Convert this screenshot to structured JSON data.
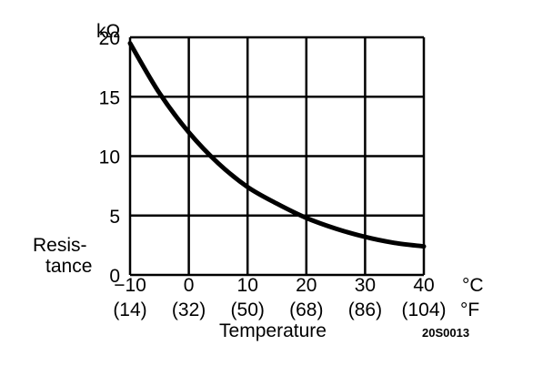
{
  "chart_data": {
    "type": "line",
    "xlabel": "Temperature",
    "ylabel_lines": [
      "Resis-",
      "tance"
    ],
    "yunit": "kΩ",
    "xunit_c": "°C",
    "xunit_f": "°F",
    "x_ticks_c": [
      "−10",
      "0",
      "10",
      "20",
      "30",
      "40"
    ],
    "x_ticks_f": [
      "(14)",
      "(32)",
      "(50)",
      "(68)",
      "(86)",
      "(104)"
    ],
    "y_ticks": [
      "0",
      "5",
      "10",
      "15",
      "20"
    ],
    "x_tick_values": [
      -10,
      0,
      10,
      20,
      30,
      40
    ],
    "y_tick_values": [
      0,
      5,
      10,
      15,
      20
    ],
    "xlim": [
      -10,
      40
    ],
    "ylim": [
      0,
      20
    ],
    "grid": true,
    "series": [
      {
        "x": [
          -10,
          -5,
          0,
          5,
          10,
          15,
          20,
          25,
          30,
          35,
          40
        ],
        "y": [
          19.5,
          15.3,
          12.0,
          9.4,
          7.4,
          6.0,
          4.8,
          3.9,
          3.2,
          2.7,
          2.4
        ]
      }
    ],
    "figure_code": "20S0013"
  }
}
